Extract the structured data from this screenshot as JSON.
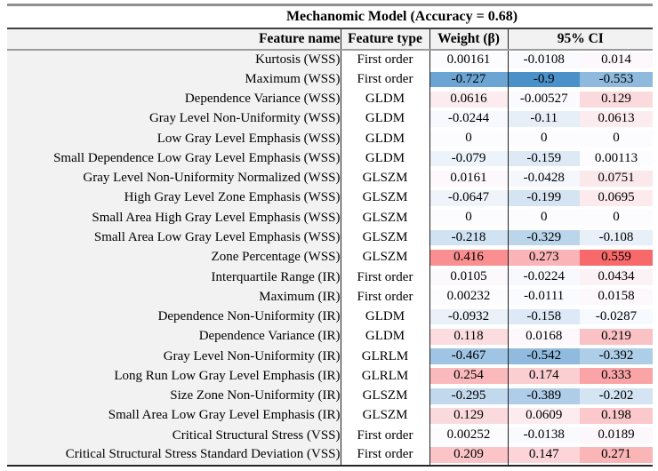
{
  "title": "Mechanomic Model (Accuracy = 0.68)",
  "columns": {
    "feature_name": "Feature name",
    "feature_type": "Feature type",
    "weight": "Weight (β)",
    "ci": "95% CI"
  },
  "color_scale": {
    "negative_color": "#4A90C9",
    "neutral_color": "#FCFCFF",
    "positive_color": "#F8696B",
    "min_value": -0.9,
    "max_value": 0.559
  },
  "rows": [
    {
      "name": "Kurtosis (WSS)",
      "type": "First order",
      "weight": "0.00161",
      "ci_low": "-0.0108",
      "ci_high": "0.014"
    },
    {
      "name": "Maximum (WSS)",
      "type": "First order",
      "weight": "-0.727",
      "ci_low": "-0.9",
      "ci_high": "-0.553"
    },
    {
      "name": "Dependence Variance (WSS)",
      "type": "GLDM",
      "weight": "0.0616",
      "ci_low": "-0.00527",
      "ci_high": "0.129"
    },
    {
      "name": "Gray Level Non-Uniformity (WSS)",
      "type": "GLDM",
      "weight": "-0.0244",
      "ci_low": "-0.11",
      "ci_high": "0.0613"
    },
    {
      "name": "Low Gray Level Emphasis (WSS)",
      "type": "GLDM",
      "weight": "0",
      "ci_low": "0",
      "ci_high": "0"
    },
    {
      "name": "Small Dependence Low Gray Level Emphasis (WSS)",
      "type": "GLDM",
      "weight": "-0.079",
      "ci_low": "-0.159",
      "ci_high": "0.00113"
    },
    {
      "name": "Gray Level Non-Uniformity Normalized (WSS)",
      "type": "GLSZM",
      "weight": "0.0161",
      "ci_low": "-0.0428",
      "ci_high": "0.0751"
    },
    {
      "name": "High Gray Level Zone Emphasis (WSS)",
      "type": "GLSZM",
      "weight": "-0.0647",
      "ci_low": "-0.199",
      "ci_high": "0.0695"
    },
    {
      "name": "Small Area High Gray Level Emphasis (WSS)",
      "type": "GLSZM",
      "weight": "0",
      "ci_low": "0",
      "ci_high": "0"
    },
    {
      "name": "Small Area Low Gray Level Emphasis (WSS)",
      "type": "GLSZM",
      "weight": "-0.218",
      "ci_low": "-0.329",
      "ci_high": "-0.108"
    },
    {
      "name": "Zone Percentage (WSS)",
      "type": "GLSZM",
      "weight": "0.416",
      "ci_low": "0.273",
      "ci_high": "0.559"
    },
    {
      "name": "Interquartile Range (IR)",
      "type": "First order",
      "weight": "0.0105",
      "ci_low": "-0.0224",
      "ci_high": "0.0434"
    },
    {
      "name": "Maximum (IR)",
      "type": "First order",
      "weight": "0.00232",
      "ci_low": "-0.0111",
      "ci_high": "0.0158"
    },
    {
      "name": "Dependence Non-Uniformity (IR)",
      "type": "GLDM",
      "weight": "-0.0932",
      "ci_low": "-0.158",
      "ci_high": "-0.0287"
    },
    {
      "name": "Dependence Variance (IR)",
      "type": "GLDM",
      "weight": "0.118",
      "ci_low": "0.0168",
      "ci_high": "0.219"
    },
    {
      "name": "Gray Level Non-Uniformity (IR)",
      "type": "GLRLM",
      "weight": "-0.467",
      "ci_low": "-0.542",
      "ci_high": "-0.392"
    },
    {
      "name": "Long Run Low Gray Level Emphasis (IR)",
      "type": "GLRLM",
      "weight": "0.254",
      "ci_low": "0.174",
      "ci_high": "0.333"
    },
    {
      "name": "Size Zone Non-Uniformity (IR)",
      "type": "GLSZM",
      "weight": "-0.295",
      "ci_low": "-0.389",
      "ci_high": "-0.202"
    },
    {
      "name": "Small Area Low Gray Level Emphasis (IR)",
      "type": "GLSZM",
      "weight": "0.129",
      "ci_low": "0.0609",
      "ci_high": "0.198"
    },
    {
      "name": "Critical Structural Stress (VSS)",
      "type": "First order",
      "weight": "0.00252",
      "ci_low": "-0.0138",
      "ci_high": "0.0189"
    },
    {
      "name": "Critical Structural Stress Standard Deviation (VSS)",
      "type": "First order",
      "weight": "0.209",
      "ci_low": "0.147",
      "ci_high": "0.271"
    }
  ]
}
